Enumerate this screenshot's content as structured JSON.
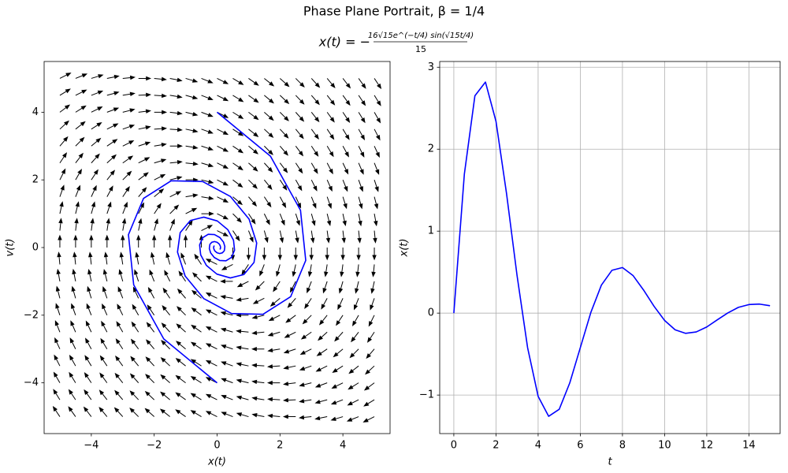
{
  "title": "Phase Plane Portrait, β = 1/4",
  "formula": {
    "lhs": "x(t) = −",
    "numerator": "16√15e^(−t/4) sin(√15t/4)",
    "denominator": "15"
  },
  "chart_data": [
    {
      "type": "phase",
      "xlabel": "x(t)",
      "ylabel": "v(t)",
      "xlim": [
        -5.5,
        5.5
      ],
      "ylim": [
        -5.5,
        5.5
      ],
      "xticks": [
        {
          "value": -4,
          "label": "−4"
        },
        {
          "value": -2,
          "label": "−2"
        },
        0,
        2,
        4
      ],
      "yticks": [
        {
          "value": -4,
          "label": "−4"
        },
        {
          "value": -2,
          "label": "−2"
        },
        0,
        2,
        4
      ],
      "grid": false,
      "quiver": {
        "color": "#000000",
        "x": [
          -5,
          -4.5,
          -4,
          -3.5,
          -3,
          -2.5,
          -2,
          -1.5,
          -1,
          -0.5,
          0,
          0.5,
          1,
          1.5,
          2,
          2.5,
          3,
          3.5,
          4,
          4.5,
          5
        ],
        "y": [
          -5,
          -4.5,
          -4,
          -3.5,
          -3,
          -2.5,
          -2,
          -1.5,
          -1,
          -0.5,
          0,
          0.5,
          1,
          1.5,
          2,
          2.5,
          3,
          3.5,
          4,
          4.5,
          5
        ]
      },
      "series": [
        {
          "color": "#0000ff",
          "x": [
            0,
            1.697,
            2.652,
            2.819,
            2.34,
            1.46,
            0.458,
            -0.422,
            -1.016,
            -1.259,
            -1.174,
            -0.852,
            -0.422,
            0.008,
            0.341,
            0.522,
            0.556,
            0.459,
            0.282,
            0.083,
            -0.09,
            -0.204,
            -0.247,
            -0.23,
            -0.169,
            -0.082,
            0.002,
            0.07,
            0.104,
            0.11,
            0.09
          ],
          "values": [
            4,
            2.7,
            1.102,
            -0.38,
            -1.452,
            -1.973,
            -1.951,
            -1.511,
            -0.841,
            -0.135,
            0.44,
            0.798,
            0.899,
            0.785,
            0.527,
            0.217,
            -0.078,
            -0.29,
            -0.392,
            -0.384,
            -0.294,
            -0.161,
            -0.029,
            0.093,
            0.156,
            0.177,
            0.155,
            0.102,
            0.04,
            -0.017,
            -0.058
          ]
        },
        {
          "color": "#0000ff",
          "x": [
            0,
            -1.697,
            -2.652,
            -2.819,
            -2.34,
            -1.46,
            -0.458,
            0.422,
            1.016,
            1.259,
            1.174,
            0.852,
            0.422,
            -0.008,
            -0.341,
            -0.522,
            -0.556,
            -0.459,
            -0.282,
            -0.083,
            0.09,
            0.204,
            0.247,
            0.23,
            0.169,
            0.082,
            -0.002,
            -0.07,
            -0.104,
            -0.11,
            -0.09
          ],
          "values": [
            -4,
            -2.7,
            -1.102,
            0.38,
            1.452,
            1.973,
            1.951,
            1.511,
            0.841,
            0.135,
            -0.44,
            -0.798,
            -0.899,
            -0.785,
            -0.527,
            -0.217,
            0.078,
            0.29,
            0.392,
            0.384,
            0.294,
            0.161,
            0.029,
            -0.093,
            -0.156,
            -0.177,
            -0.155,
            -0.102,
            -0.04,
            0.017,
            0.058
          ]
        }
      ]
    },
    {
      "type": "line",
      "xlabel": "t",
      "ylabel": "x(t)",
      "x": [
        0,
        0.5,
        1,
        1.5,
        2,
        2.5,
        3,
        3.5,
        4,
        4.5,
        5,
        5.5,
        6,
        6.5,
        7,
        7.5,
        8,
        8.5,
        9,
        9.5,
        10,
        10.5,
        11,
        11.5,
        12,
        12.5,
        13,
        13.5,
        14,
        14.5,
        15
      ],
      "series": [
        {
          "color": "#0000ff",
          "values": [
            0,
            1.697,
            2.652,
            2.819,
            2.34,
            1.46,
            0.458,
            -0.422,
            -1.016,
            -1.259,
            -1.174,
            -0.852,
            -0.422,
            0.008,
            0.341,
            0.522,
            0.556,
            0.459,
            0.282,
            0.083,
            -0.09,
            -0.204,
            -0.247,
            -0.23,
            -0.169,
            -0.082,
            0.002,
            0.07,
            0.104,
            0.11,
            0.09
          ]
        }
      ],
      "xlim": [
        -0.67,
        15.48
      ],
      "ylim": [
        -1.47,
        3.07
      ],
      "xticks": [
        0,
        2,
        4,
        6,
        8,
        10,
        12,
        14
      ],
      "yticks": [
        {
          "value": -1,
          "label": "−1"
        },
        0,
        1,
        2,
        3
      ],
      "grid": true
    }
  ]
}
